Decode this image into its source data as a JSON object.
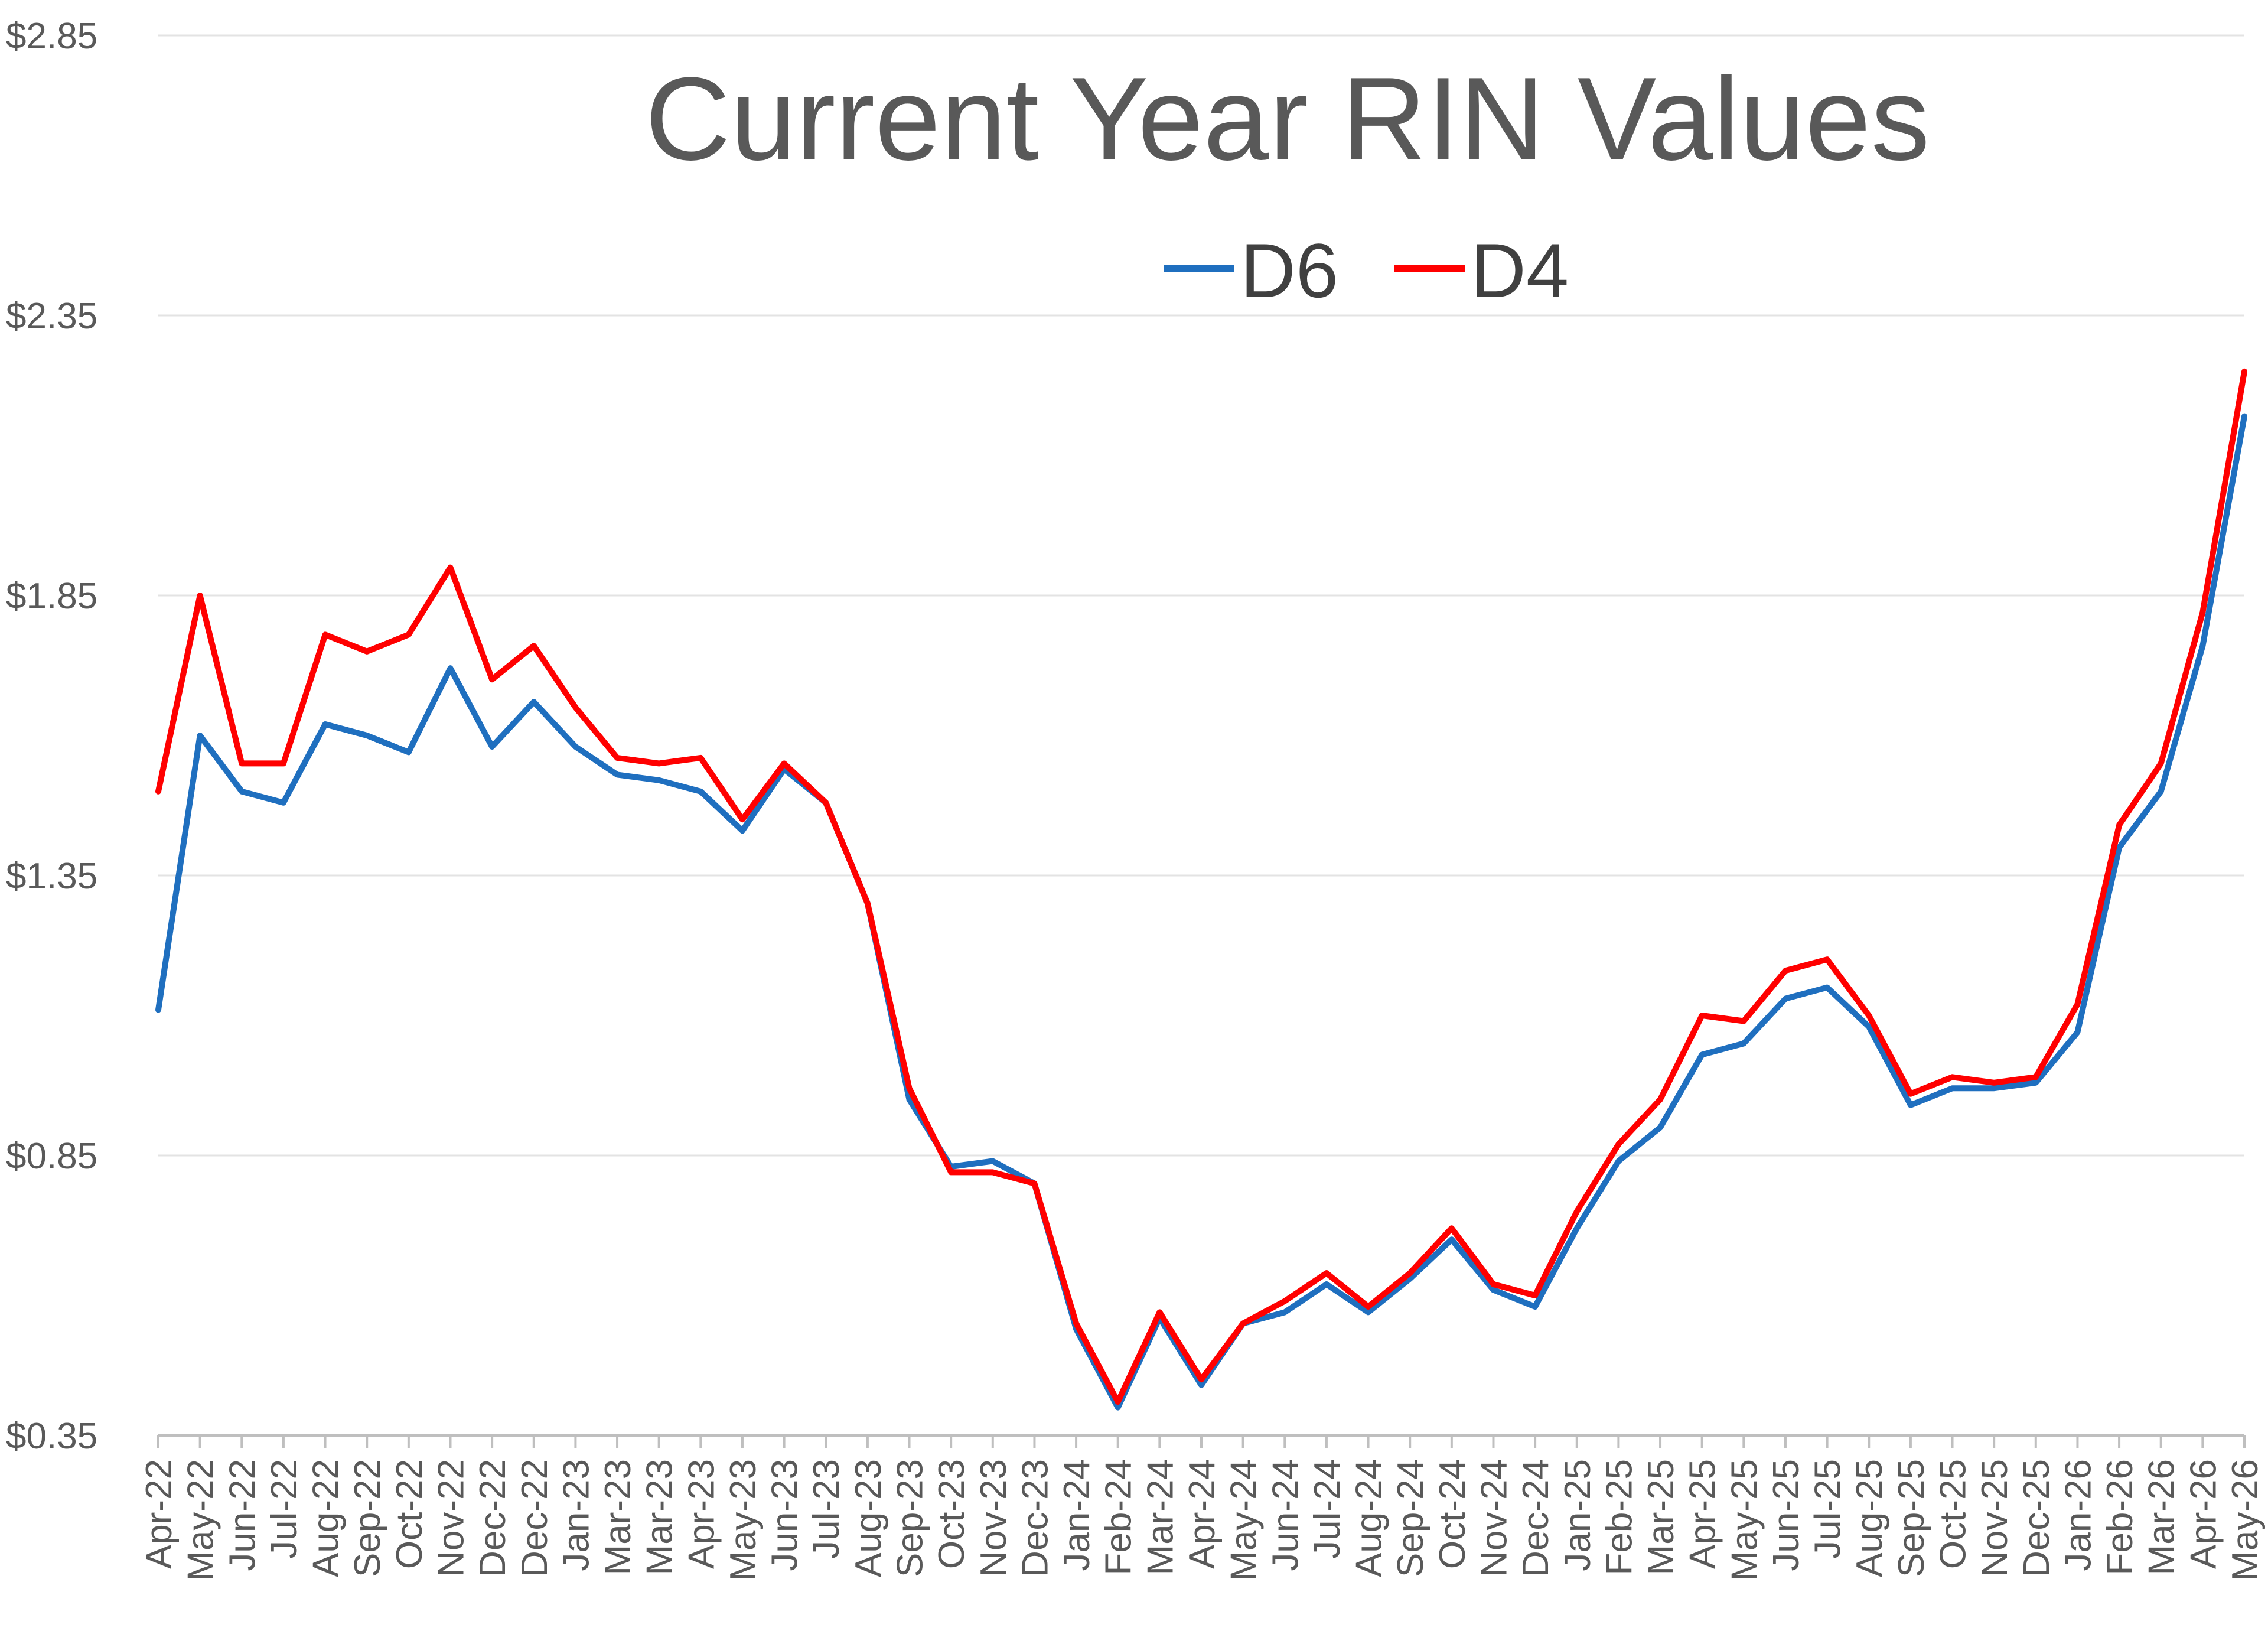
{
  "chart_data": {
    "type": "line",
    "title": "Current Year RIN Values",
    "xlabel": "",
    "ylabel": "",
    "ylim": [
      0.35,
      2.85
    ],
    "yticks": [
      "$0.35",
      "$0.85",
      "$1.35",
      "$1.85",
      "$2.35",
      "$2.85"
    ],
    "ytick_values": [
      0.35,
      0.85,
      1.35,
      1.85,
      2.35,
      2.85
    ],
    "grid": true,
    "legend": "top-center",
    "categories": [
      "Apr-22",
      "May-22",
      "Jun-22",
      "Jul-22",
      "Aug-22",
      "Sep-22",
      "Oct-22",
      "Nov-22",
      "Dec-22",
      "Dec-22",
      "Jan-23",
      "Mar-23",
      "Mar-23",
      "Apr-23",
      "May-23",
      "Jun-23",
      "Jul-23",
      "Aug-23",
      "Sep-23",
      "Oct-23",
      "Nov-23",
      "Dec-23",
      "Jan-24",
      "Feb-24",
      "Mar-24",
      "Apr-24",
      "May-24",
      "Jun-24",
      "Jul-24",
      "Aug-24",
      "Sep-24",
      "Oct-24",
      "Nov-24",
      "Dec-24",
      "Jan-25",
      "Feb-25",
      "Mar-25",
      "Apr-25",
      "May-25",
      "Jun-25",
      "Jul-25",
      "Aug-25",
      "Sep-25",
      "Oct-25",
      "Nov-25",
      "Dec-25",
      "Jan-26",
      "Feb-26",
      "Mar-26",
      "Apr-26",
      "May-26"
    ],
    "series": [
      {
        "name": "D6",
        "color": "#1f6fbf",
        "values": [
          1.11,
          1.6,
          1.5,
          1.48,
          1.62,
          1.6,
          1.57,
          1.72,
          1.58,
          1.66,
          1.58,
          1.53,
          1.52,
          1.5,
          1.43,
          1.54,
          1.48,
          1.3,
          0.95,
          0.83,
          0.84,
          0.8,
          0.54,
          0.4,
          0.56,
          0.44,
          0.55,
          0.57,
          0.62,
          0.57,
          0.63,
          0.7,
          0.61,
          0.58,
          0.72,
          0.84,
          0.9,
          1.03,
          1.05,
          1.13,
          1.15,
          1.08,
          0.94,
          0.97,
          0.97,
          0.98,
          1.07,
          1.4,
          1.5,
          1.76,
          2.17
        ]
      },
      {
        "name": "D4",
        "color": "#ff0000",
        "values": [
          1.5,
          1.85,
          1.55,
          1.55,
          1.78,
          1.75,
          1.78,
          1.9,
          1.7,
          1.76,
          1.65,
          1.56,
          1.55,
          1.56,
          1.45,
          1.55,
          1.48,
          1.3,
          0.97,
          0.82,
          0.82,
          0.8,
          0.55,
          0.41,
          0.57,
          0.45,
          0.55,
          0.59,
          0.64,
          0.58,
          0.64,
          0.72,
          0.62,
          0.6,
          0.75,
          0.87,
          0.95,
          1.1,
          1.09,
          1.18,
          1.2,
          1.1,
          0.96,
          0.99,
          0.98,
          0.99,
          1.12,
          1.44,
          1.55,
          1.82,
          2.25
        ]
      }
    ]
  }
}
